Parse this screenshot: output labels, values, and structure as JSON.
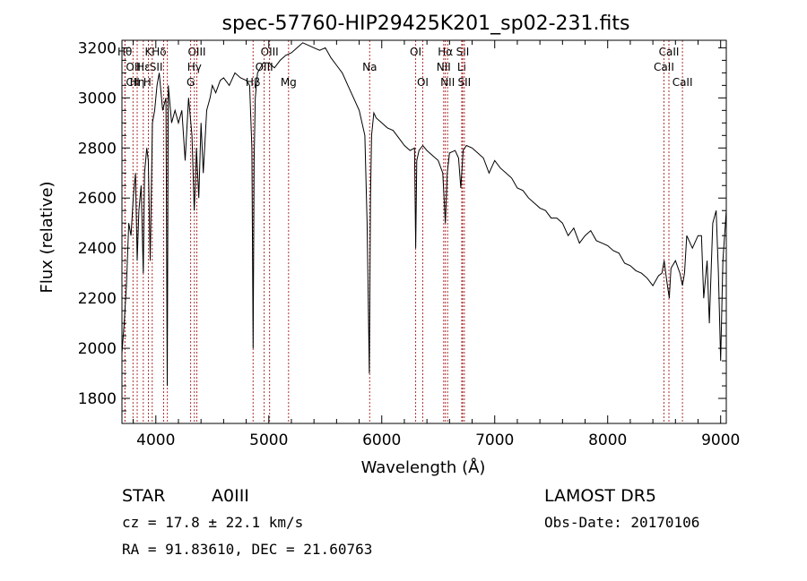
{
  "chart_data": {
    "type": "line",
    "title": "spec-57760-HIP29425K201_sp02-231.fits",
    "xlabel": "Wavelength (Å)",
    "ylabel": "Flux (relative)",
    "xlim": [
      3700,
      9050
    ],
    "ylim": [
      1700,
      3230
    ],
    "xticks": [
      4000,
      5000,
      6000,
      7000,
      8000,
      9000
    ],
    "yticks": [
      1800,
      2000,
      2200,
      2400,
      2600,
      2800,
      3000,
      3200
    ],
    "line_color": "#000000",
    "marker_color": "#b03030",
    "x": [
      3700,
      3720,
      3740,
      3760,
      3780,
      3800,
      3820,
      3835,
      3850,
      3870,
      3889,
      3900,
      3920,
      3933,
      3950,
      3970,
      3990,
      4010,
      4030,
      4060,
      4090,
      4101,
      4110,
      4140,
      4170,
      4200,
      4230,
      4260,
      4290,
      4320,
      4340,
      4350,
      4360,
      4380,
      4400,
      4420,
      4450,
      4480,
      4500,
      4530,
      4570,
      4600,
      4650,
      4700,
      4750,
      4800,
      4830,
      4850,
      4861,
      4870,
      4880,
      4900,
      4950,
      5000,
      5050,
      5100,
      5150,
      5200,
      5250,
      5300,
      5350,
      5400,
      5450,
      5500,
      5550,
      5600,
      5650,
      5700,
      5750,
      5800,
      5850,
      5870,
      5890,
      5900,
      5910,
      5930,
      5950,
      6000,
      6050,
      6100,
      6150,
      6200,
      6250,
      6290,
      6300,
      6310,
      6330,
      6363,
      6400,
      6450,
      6500,
      6540,
      6563,
      6580,
      6600,
      6650,
      6680,
      6700,
      6720,
      6750,
      6800,
      6850,
      6900,
      6950,
      7000,
      7050,
      7100,
      7150,
      7200,
      7250,
      7300,
      7350,
      7400,
      7450,
      7500,
      7550,
      7600,
      7650,
      7700,
      7750,
      7800,
      7850,
      7900,
      7950,
      8000,
      8050,
      8100,
      8150,
      8200,
      8250,
      8300,
      8350,
      8400,
      8450,
      8480,
      8500,
      8520,
      8545,
      8560,
      8600,
      8640,
      8662,
      8680,
      8700,
      8750,
      8800,
      8830,
      8850,
      8880,
      8900,
      8930,
      8960,
      8980,
      9000,
      9020,
      9050
    ],
    "y": [
      1980,
      2100,
      2250,
      2500,
      2450,
      2600,
      2700,
      2350,
      2550,
      2650,
      2300,
      2700,
      2800,
      2750,
      2350,
      2900,
      2950,
      3050,
      3100,
      2950,
      3000,
      1850,
      3050,
      2900,
      2950,
      2900,
      2950,
      2750,
      3000,
      2850,
      2550,
      2650,
      2800,
      2600,
      2900,
      2700,
      2950,
      3000,
      3050,
      3020,
      3070,
      3080,
      3050,
      3100,
      3080,
      3070,
      3050,
      2800,
      2000,
      2750,
      3000,
      3100,
      3140,
      3140,
      3120,
      3150,
      3170,
      3180,
      3200,
      3220,
      3210,
      3200,
      3190,
      3200,
      3160,
      3130,
      3100,
      3050,
      3000,
      2950,
      2850,
      2500,
      1900,
      2600,
      2850,
      2940,
      2920,
      2900,
      2880,
      2870,
      2840,
      2810,
      2790,
      2800,
      2400,
      2750,
      2790,
      2810,
      2790,
      2770,
      2750,
      2700,
      2500,
      2700,
      2780,
      2790,
      2760,
      2640,
      2790,
      2810,
      2800,
      2780,
      2760,
      2700,
      2750,
      2720,
      2700,
      2680,
      2640,
      2630,
      2600,
      2580,
      2560,
      2550,
      2520,
      2520,
      2500,
      2450,
      2480,
      2420,
      2450,
      2470,
      2430,
      2420,
      2410,
      2390,
      2380,
      2340,
      2330,
      2310,
      2300,
      2280,
      2250,
      2290,
      2300,
      2350,
      2280,
      2200,
      2320,
      2350,
      2300,
      2250,
      2300,
      2450,
      2400,
      2450,
      2450,
      2200,
      2350,
      2100,
      2500,
      2550,
      2300,
      1950,
      2350,
      2550
    ]
  },
  "line_markers": [
    {
      "label": "Hθ",
      "x": 3798,
      "row": 0,
      "anchor": "end"
    },
    {
      "label": "K",
      "x": 3934,
      "row": 0,
      "anchor": "middle"
    },
    {
      "label": "Hδ",
      "x": 4102,
      "row": 0,
      "anchor": "end"
    },
    {
      "label": "OIII",
      "x": 4363,
      "row": 0,
      "anchor": "middle"
    },
    {
      "label": "OII",
      "x": 3727,
      "row": 1,
      "anchor": "start"
    },
    {
      "label": "Hε",
      "x": 3889,
      "row": 1,
      "anchor": "middle"
    },
    {
      "label": "SII",
      "x": 4069,
      "row": 1,
      "anchor": "end"
    },
    {
      "label": "Hγ",
      "x": 4341,
      "row": 1,
      "anchor": "middle"
    },
    {
      "label": "CII",
      "x": 3727,
      "row": 2,
      "anchor": "start"
    },
    {
      "label": "Hη",
      "x": 3835,
      "row": 2,
      "anchor": "middle"
    },
    {
      "label": "H",
      "x": 3968,
      "row": 2,
      "anchor": "end"
    },
    {
      "label": "G",
      "x": 4308,
      "row": 2,
      "anchor": "middle"
    },
    {
      "label": "OIII",
      "x": 5007,
      "row": 0,
      "anchor": "middle"
    },
    {
      "label": "OIII",
      "x": 4959,
      "row": 1,
      "anchor": "middle"
    },
    {
      "label": "Hβ",
      "x": 4861,
      "row": 2,
      "anchor": "middle"
    },
    {
      "label": "Mg",
      "x": 5175,
      "row": 2,
      "anchor": "middle"
    },
    {
      "label": "Na",
      "x": 5893,
      "row": 1,
      "anchor": "middle"
    },
    {
      "label": "OI",
      "x": 6300,
      "row": 0,
      "anchor": "middle"
    },
    {
      "label": "OI",
      "x": 6363,
      "row": 2,
      "anchor": "middle"
    },
    {
      "label": "Hα",
      "x": 6563,
      "row": 0,
      "anchor": "middle"
    },
    {
      "label": "SII",
      "x": 6716,
      "row": 0,
      "anchor": "middle"
    },
    {
      "label": "NII",
      "x": 6548,
      "row": 1,
      "anchor": "middle"
    },
    {
      "label": "Li",
      "x": 6708,
      "row": 1,
      "anchor": "middle"
    },
    {
      "label": "NII",
      "x": 6583,
      "row": 2,
      "anchor": "middle"
    },
    {
      "label": "SII",
      "x": 6731,
      "row": 2,
      "anchor": "middle"
    },
    {
      "label": "CaII",
      "x": 8542,
      "row": 0,
      "anchor": "middle"
    },
    {
      "label": "CaII",
      "x": 8498,
      "row": 1,
      "anchor": "middle"
    },
    {
      "label": "CaII",
      "x": 8662,
      "row": 2,
      "anchor": "middle"
    }
  ],
  "info": {
    "class_label": "STAR",
    "subclass": "A0III",
    "survey": "LAMOST  DR5",
    "cz": "cz = 17.8 ± 22.1 km/s",
    "obs_date": "Obs-Date: 20170106",
    "radec": "RA =  91.83610, DEC =  21.60763"
  }
}
